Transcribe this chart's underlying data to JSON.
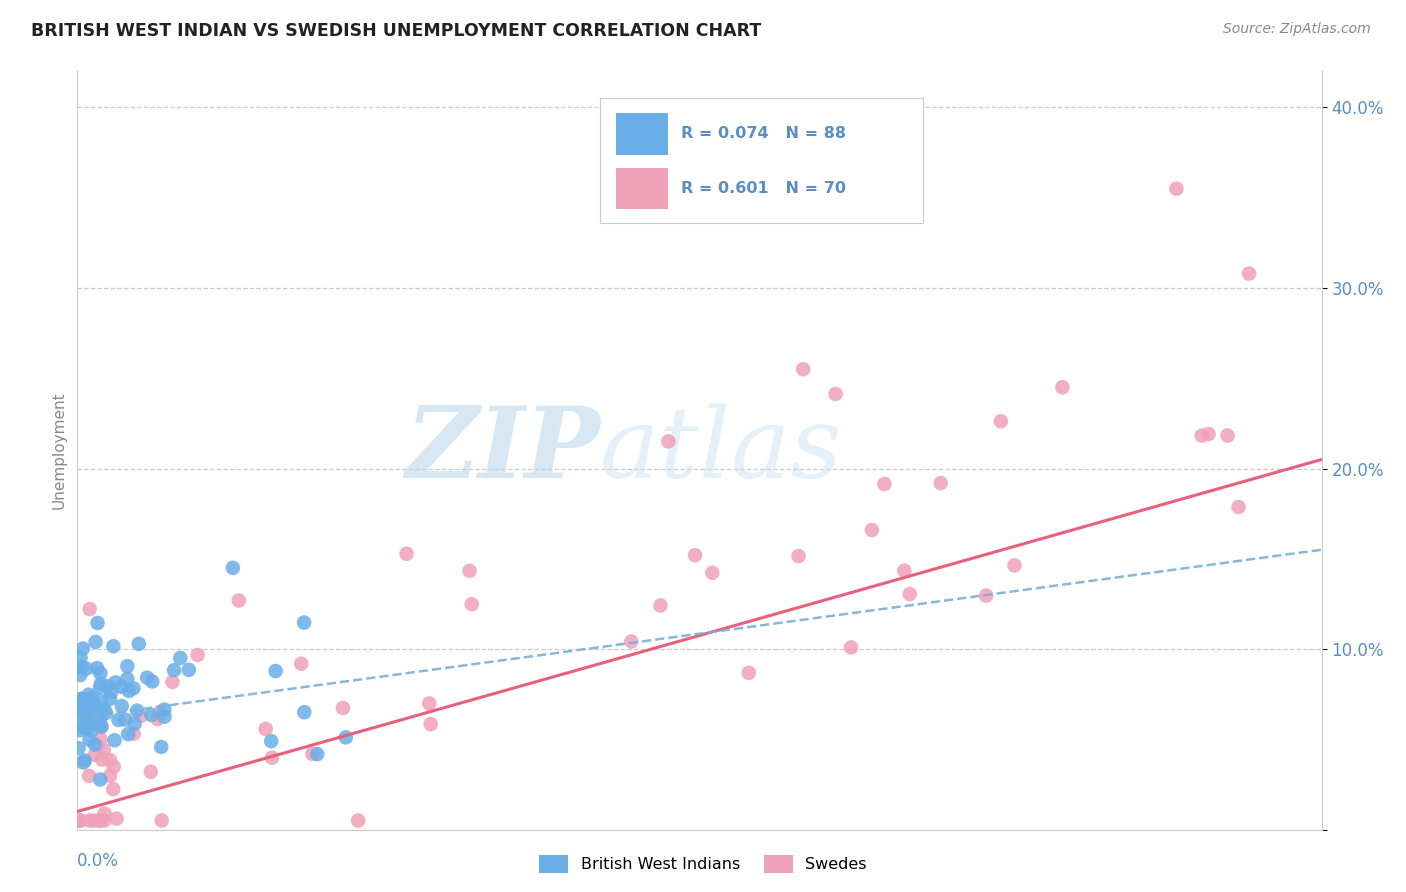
{
  "title": "BRITISH WEST INDIAN VS SWEDISH UNEMPLOYMENT CORRELATION CHART",
  "source": "Source: ZipAtlas.com",
  "ylabel": "Unemployment",
  "color_blue": "#6aaee8",
  "color_pink": "#f0a0b8",
  "color_blue_line": "#7ab0d8",
  "color_pink_line": "#e8607a",
  "watermark_color": "#d0e8f8",
  "background_color": "#ffffff",
  "grid_color": "#cccccc",
  "tick_color": "#5b8ec4",
  "xmin": 0.0,
  "xmax": 0.6,
  "ymin": 0.0,
  "ymax": 0.42,
  "yticks": [
    0.0,
    0.1,
    0.2,
    0.3,
    0.4
  ],
  "ytick_labels": [
    "",
    "10.0%",
    "20.0%",
    "30.0%",
    "40.0%"
  ],
  "blue_trend_x": [
    0.0,
    0.6
  ],
  "blue_trend_y": [
    0.062,
    0.155
  ],
  "pink_trend_x": [
    0.0,
    0.6
  ],
  "pink_trend_y": [
    0.01,
    0.205
  ],
  "legend_r1": "R = 0.074",
  "legend_n1": "N = 88",
  "legend_r2": "R = 0.601",
  "legend_n2": "N = 70",
  "watermark_text": "ZIPatlas"
}
